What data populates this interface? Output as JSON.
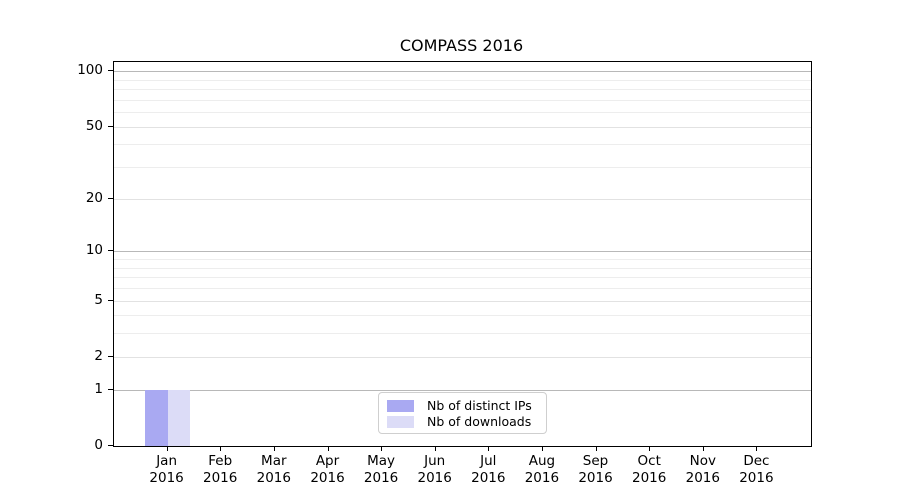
{
  "title": "COMPASS 2016",
  "chart_data": {
    "type": "bar",
    "title": "COMPASS 2016",
    "categories": [
      {
        "month": "Jan",
        "year": "2016"
      },
      {
        "month": "Feb",
        "year": "2016"
      },
      {
        "month": "Mar",
        "year": "2016"
      },
      {
        "month": "Apr",
        "year": "2016"
      },
      {
        "month": "May",
        "year": "2016"
      },
      {
        "month": "Jun",
        "year": "2016"
      },
      {
        "month": "Jul",
        "year": "2016"
      },
      {
        "month": "Aug",
        "year": "2016"
      },
      {
        "month": "Sep",
        "year": "2016"
      },
      {
        "month": "Oct",
        "year": "2016"
      },
      {
        "month": "Nov",
        "year": "2016"
      },
      {
        "month": "Dec",
        "year": "2016"
      }
    ],
    "series": [
      {
        "name": "Nb of distinct IPs",
        "color": "#a9a9f2",
        "values": [
          1,
          0,
          0,
          0,
          0,
          0,
          0,
          0,
          0,
          0,
          0,
          0
        ]
      },
      {
        "name": "Nb of downloads",
        "color": "#dcdcf7",
        "values": [
          1,
          0,
          0,
          0,
          0,
          0,
          0,
          0,
          0,
          0,
          0,
          0
        ]
      }
    ],
    "y_axis": {
      "scale": "log1p",
      "max": 112,
      "tick_labels": [
        "0",
        "1",
        "2",
        "5",
        "10",
        "20",
        "50",
        "100"
      ],
      "ticks": [
        0,
        1,
        2,
        5,
        10,
        20,
        50,
        100
      ],
      "strong_gridlines": [
        1,
        10,
        100
      ],
      "minor_gridlines": [
        3,
        4,
        6,
        7,
        8,
        9,
        30,
        40,
        60,
        70,
        80,
        90
      ]
    },
    "legend": {
      "position": "bottom-center",
      "entries": [
        "Nb of distinct IPs",
        "Nb of downloads"
      ]
    },
    "colors": {
      "distinct_ips": "#a9a9f2",
      "downloads": "#dcdcf7",
      "grid_strong": "#b8b8b8",
      "grid_minor": "#ededed",
      "axis": "#000000"
    }
  }
}
